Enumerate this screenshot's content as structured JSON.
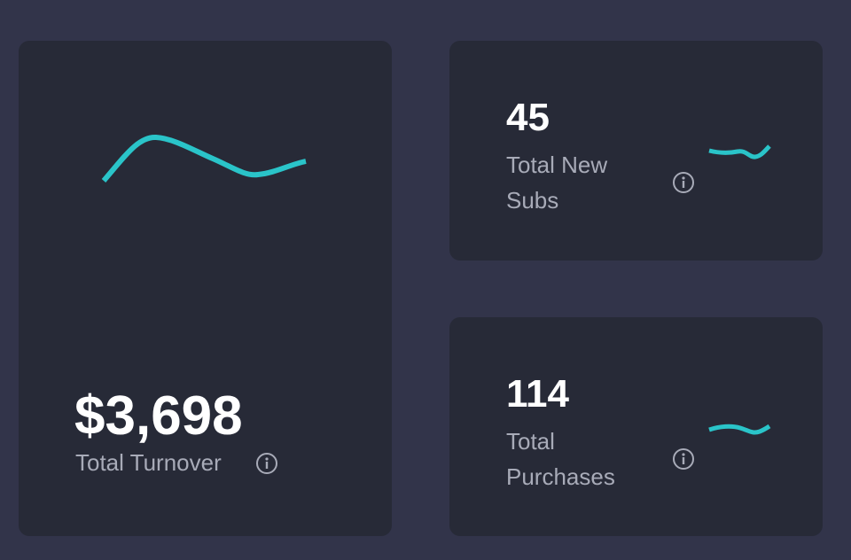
{
  "cards": [
    {
      "value": "$3,698",
      "label": "Total Turnover",
      "info_icon": "info-circle-icon"
    },
    {
      "value": "45",
      "label_line1": "Total New",
      "label_line2": "Subs",
      "info_icon": "info-circle-icon"
    },
    {
      "value": "114",
      "label_line1": "Total",
      "label_line2": "Purchases",
      "info_icon": "info-circle-icon"
    }
  ],
  "colors": {
    "accent": "#2ac4c9",
    "card": "#272a37",
    "background": "#32344a"
  }
}
